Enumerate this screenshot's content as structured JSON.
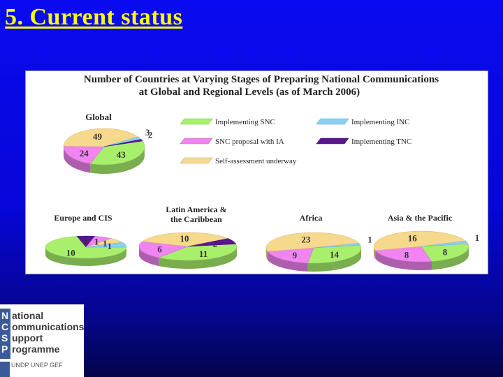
{
  "slide": {
    "title": "5. Current status"
  },
  "chart_data": {
    "type": "pie",
    "title": "Number of Countries at Varying Stages of Preparing National Communications",
    "subtitle": "at Global and Regional Levels (as of March 2006)",
    "legend": [
      {
        "key": "snc",
        "label": "Implementing SNC",
        "color": "#a8f06c"
      },
      {
        "key": "inc",
        "label": "Implementing INC",
        "color": "#8ad0f2"
      },
      {
        "key": "ia",
        "label": "SNC proposal with IA",
        "color": "#f084f0"
      },
      {
        "key": "tnc",
        "label": "Implementing TNC",
        "color": "#5a1590"
      },
      {
        "key": "sa",
        "label": "Self-assessment  underway",
        "color": "#f6d98c"
      }
    ],
    "pies": [
      {
        "name": "Global",
        "slices": [
          {
            "key": "snc",
            "value": 43
          },
          {
            "key": "ia",
            "value": 24
          },
          {
            "key": "sa",
            "value": 49
          },
          {
            "key": "inc",
            "value": 3
          },
          {
            "key": "tnc",
            "value": 2
          }
        ]
      },
      {
        "name": "Europe and CIS",
        "slices": [
          {
            "key": "snc",
            "value": 10
          },
          {
            "key": "tnc",
            "value": 1
          },
          {
            "key": "ia",
            "value": 1
          },
          {
            "key": "sa",
            "value": 1
          },
          {
            "key": "inc",
            "value": 1
          }
        ]
      },
      {
        "name": "Latin America & the Caribbean",
        "slices": [
          {
            "key": "snc",
            "value": 11
          },
          {
            "key": "ia",
            "value": 6
          },
          {
            "key": "sa",
            "value": 10
          },
          {
            "key": "tnc",
            "value": 2
          }
        ]
      },
      {
        "name": "Africa",
        "slices": [
          {
            "key": "snc",
            "value": 14
          },
          {
            "key": "ia",
            "value": 9
          },
          {
            "key": "sa",
            "value": 23
          },
          {
            "key": "inc",
            "value": 1
          }
        ]
      },
      {
        "name": "Asia & the Pacific",
        "slices": [
          {
            "key": "snc",
            "value": 8
          },
          {
            "key": "ia",
            "value": 8
          },
          {
            "key": "sa",
            "value": 16
          },
          {
            "key": "inc",
            "value": 1
          }
        ]
      }
    ]
  },
  "logo": {
    "lines": [
      {
        "cap": "N",
        "rest": "ational"
      },
      {
        "cap": "C",
        "rest": "ommunications"
      },
      {
        "cap": "S",
        "rest": "upport"
      },
      {
        "cap": "P",
        "rest": "rogramme"
      }
    ],
    "partners": "UNDP  UNEP  GEF"
  }
}
